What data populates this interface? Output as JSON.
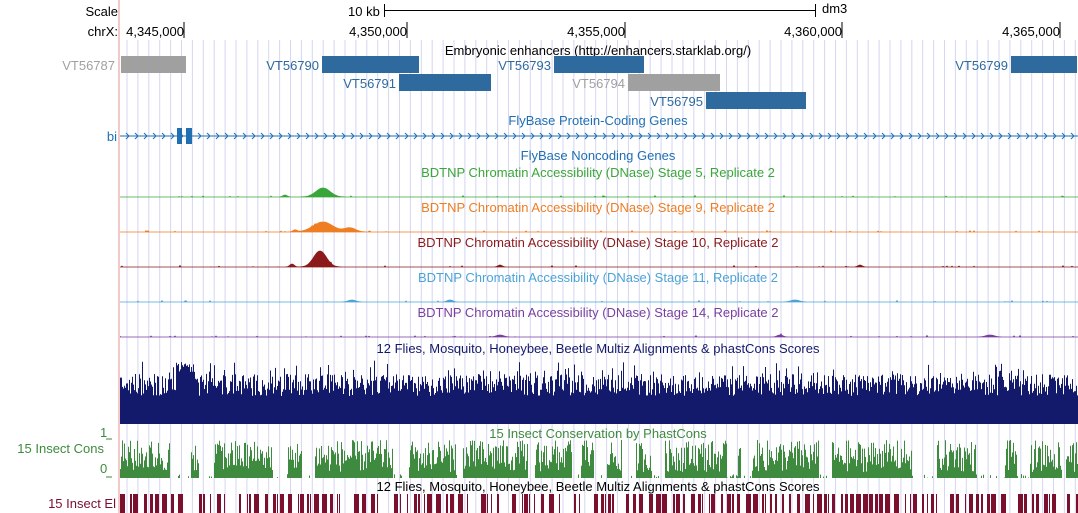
{
  "ruler": {
    "scale_label": "Scale",
    "chrom_label": "chrX:",
    "scale_bar_label": "10 kb",
    "assembly": "dm3",
    "positions": [
      "4,345,000",
      "4,350,000",
      "4,355,000",
      "4,360,000",
      "4,365,000"
    ]
  },
  "tracks": {
    "enhancers": {
      "title": "Embryonic enhancers (http://enhancers.starklab.org/)",
      "features": [
        {
          "name": "VT56787",
          "color": "#a0a0a0"
        },
        {
          "name": "VT56790",
          "color": "#2e6a9e"
        },
        {
          "name": "VT56791",
          "color": "#2e6a9e"
        },
        {
          "name": "VT56793",
          "color": "#2e6a9e"
        },
        {
          "name": "VT56794",
          "color": "#a0a0a0"
        },
        {
          "name": "VT56795",
          "color": "#2e6a9e"
        },
        {
          "name": "VT56799",
          "color": "#2e6a9e"
        }
      ]
    },
    "flybase_coding": {
      "title": "FlyBase Protein-Coding Genes",
      "gene_label": "bi",
      "color": "#1f6fb2"
    },
    "flybase_noncoding": {
      "title": "FlyBase Noncoding Genes",
      "color": "#1f6fb2"
    },
    "dnase": [
      {
        "title": "BDTNP Chromatin Accessibility (DNase) Stage 5, Replicate 2",
        "color": "#3aa63a"
      },
      {
        "title": "BDTNP Chromatin Accessibility (DNase) Stage 9, Replicate 2",
        "color": "#ef7d22"
      },
      {
        "title": "BDTNP Chromatin Accessibility (DNase) Stage 10, Replicate 2",
        "color": "#8b1a1a"
      },
      {
        "title": "BDTNP Chromatin Accessibility (DNase) Stage 11, Replicate 2",
        "color": "#4da3d6"
      },
      {
        "title": "BDTNP Chromatin Accessibility (DNase) Stage 14, Replicate 2",
        "color": "#7a3fa0"
      }
    ],
    "multiz": {
      "title": "12 Flies, Mosquito, Honeybee, Beetle Multiz Alignments & phastCons Scores",
      "color": "#141a6b"
    },
    "cons": {
      "title": "15 Insect Conservation by PhastCons",
      "side_label": "15 Insect Cons",
      "tick_max": "1",
      "tick_min": "0",
      "color": "#3e8a3e"
    },
    "elements": {
      "title": "12 Flies, Mosquito, Honeybee, Beetle Multiz Alignments & phastCons Scores",
      "side_label": "15 Insect El",
      "color": "#7a0f2e"
    }
  }
}
